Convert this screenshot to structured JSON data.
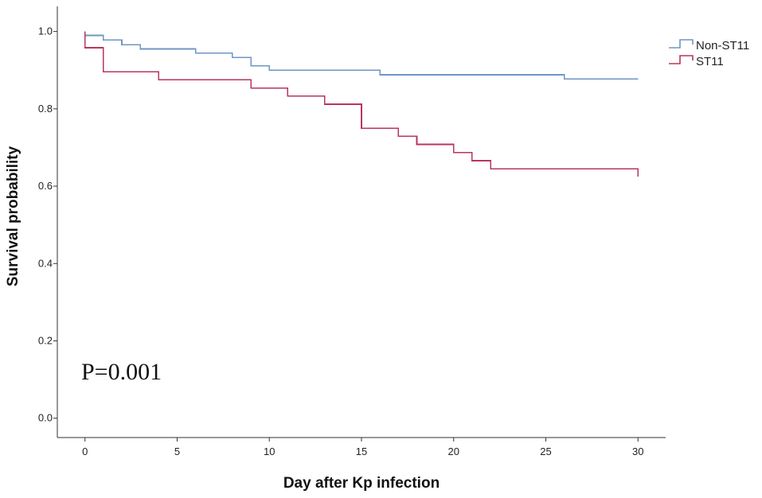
{
  "chart_data": {
    "type": "line",
    "subtype": "kaplan-meier-step",
    "title": "",
    "xlabel": "Day after Kp infection",
    "ylabel": "Survival probability",
    "xlim": [
      -1.5,
      31.5
    ],
    "ylim": [
      -0.05,
      1.065
    ],
    "xticks": [
      0,
      5,
      10,
      15,
      20,
      25,
      30
    ],
    "yticks": [
      0.0,
      0.2,
      0.4,
      0.6,
      0.8,
      1.0
    ],
    "ytick_labels": [
      "0.0",
      "0.2",
      "0.4",
      "0.6",
      "0.8",
      "1.0"
    ],
    "grid": false,
    "legend_position": "top-right",
    "annotation": "P=0.001",
    "series": [
      {
        "name": "Non-ST11",
        "color": "#6f96c6",
        "steps": [
          [
            0,
            1.0
          ],
          [
            0,
            0.99
          ],
          [
            1,
            0.978
          ],
          [
            2,
            0.966
          ],
          [
            3,
            0.955
          ],
          [
            6,
            0.944
          ],
          [
            8,
            0.933
          ],
          [
            9,
            0.911
          ],
          [
            10,
            0.9
          ],
          [
            16,
            0.888
          ],
          [
            26,
            0.877
          ],
          [
            30,
            0.877
          ]
        ]
      },
      {
        "name": "ST11",
        "color": "#b8365c",
        "steps": [
          [
            0,
            1.0
          ],
          [
            0,
            0.958
          ],
          [
            1,
            0.896
          ],
          [
            4,
            0.875
          ],
          [
            9,
            0.854
          ],
          [
            11,
            0.833
          ],
          [
            13,
            0.812
          ],
          [
            15,
            0.75
          ],
          [
            17,
            0.729
          ],
          [
            18,
            0.708
          ],
          [
            20,
            0.687
          ],
          [
            21,
            0.666
          ],
          [
            22,
            0.645
          ],
          [
            30,
            0.645
          ],
          [
            30,
            0.625
          ]
        ]
      }
    ]
  }
}
